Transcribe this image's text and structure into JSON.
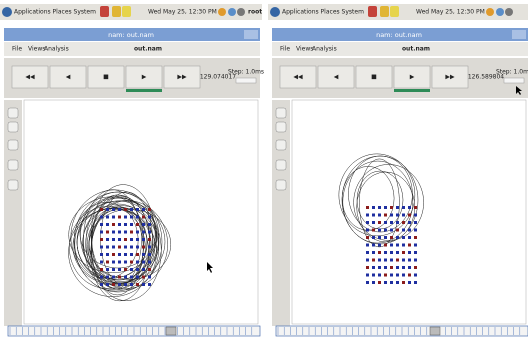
{
  "panels": [
    {
      "menu": "Applications Places System",
      "clock": "Wed May 25, 12:30 PM",
      "user": "root",
      "window_title": "nam: out.nam",
      "menubar": [
        "File",
        "Views",
        "Analysis"
      ],
      "file": "out.nam",
      "time": "129.074017",
      "step": "Step: 1.0ms"
    },
    {
      "menu": "Applications Places System",
      "clock": "Wed May 25, 12:30 PM",
      "window_title": "nam: out.nam",
      "menubar": [
        "File",
        "Views",
        "Analysis"
      ],
      "file": "out.nam",
      "time": "126.589804",
      "step": "Step: 1.0ms"
    }
  ]
}
